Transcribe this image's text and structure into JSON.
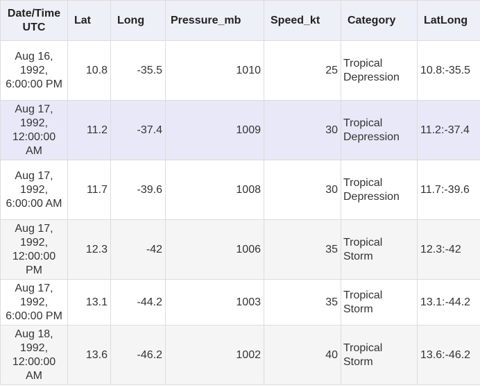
{
  "columns": [
    "Date/Time UTC",
    "Lat",
    "Long",
    "Pressure_mb",
    "Speed_kt",
    "Category",
    "LatLong"
  ],
  "rows": [
    {
      "datetime": "Aug 16, 1992, 6:00:00 PM",
      "lat": "10.8",
      "long": "-35.5",
      "pressure_mb": "1010",
      "speed_kt": "25",
      "category": "Tropical Depression",
      "latlong": "10.8:-35.5"
    },
    {
      "datetime": "Aug 17, 1992, 12:00:00 AM",
      "lat": "11.2",
      "long": "-37.4",
      "pressure_mb": "1009",
      "speed_kt": "30",
      "category": "Tropical Depression",
      "latlong": "11.2:-37.4"
    },
    {
      "datetime": "Aug 17, 1992, 6:00:00 AM",
      "lat": "11.7",
      "long": "-39.6",
      "pressure_mb": "1008",
      "speed_kt": "30",
      "category": "Tropical Depression",
      "latlong": "11.7:-39.6"
    },
    {
      "datetime": "Aug 17, 1992, 12:00:00 PM",
      "lat": "12.3",
      "long": "-42",
      "pressure_mb": "1006",
      "speed_kt": "35",
      "category": "Tropical Storm",
      "latlong": "12.3:-42"
    },
    {
      "datetime": "Aug 17, 1992, 6:00:00 PM",
      "lat": "13.1",
      "long": "-44.2",
      "pressure_mb": "1003",
      "speed_kt": "35",
      "category": "Tropical Storm",
      "latlong": "13.1:-44.2"
    },
    {
      "datetime": "Aug 18, 1992, 12:00:00 AM",
      "lat": "13.6",
      "long": "-46.2",
      "pressure_mb": "1002",
      "speed_kt": "40",
      "category": "Tropical Storm",
      "latlong": "13.6:-46.2"
    }
  ],
  "colors": {
    "header_bg": "#eef0f8",
    "highlighted_row_bg": "#e8e8f8",
    "alt_row_bg": "#f5f5f5",
    "grid_line": "#dcdcdc"
  }
}
